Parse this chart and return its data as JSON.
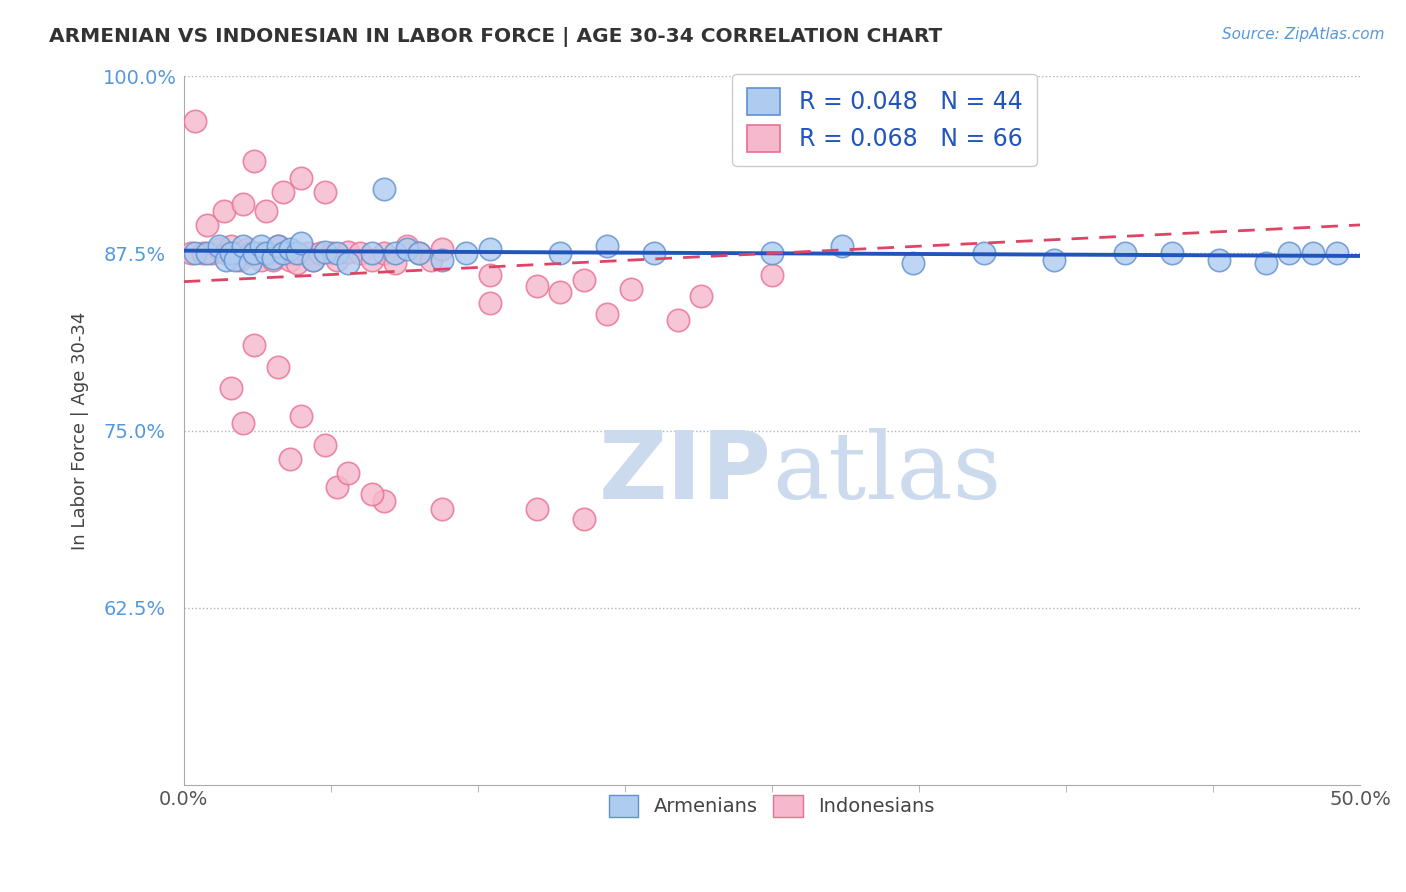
{
  "title": "ARMENIAN VS INDONESIAN IN LABOR FORCE | AGE 30-34 CORRELATION CHART",
  "source_text": "Source: ZipAtlas.com",
  "xlabel": "",
  "ylabel": "In Labor Force | Age 30-34",
  "xlim": [
    0.0,
    0.5
  ],
  "ylim": [
    0.5,
    1.0
  ],
  "xtick_vals": [
    0.0,
    0.5
  ],
  "xtick_labels": [
    "0.0%",
    "50.0%"
  ],
  "xminor_ticks": [
    0.0625,
    0.125,
    0.1875,
    0.25,
    0.3125,
    0.375,
    0.4375
  ],
  "ytick_vals": [
    0.625,
    0.75,
    0.875,
    1.0
  ],
  "ytick_labels": [
    "62.5%",
    "75.0%",
    "87.5%",
    "100.0%"
  ],
  "armenian_R": 0.048,
  "armenian_N": 44,
  "indonesian_R": 0.068,
  "indonesian_N": 66,
  "armenian_color": "#aeccf0",
  "indonesian_color": "#f5b8cc",
  "armenian_edge_color": "#6090d0",
  "indonesian_edge_color": "#e87090",
  "trend_armenian_color": "#2255bb",
  "trend_indonesian_color": "#dd4466",
  "watermark_color": "#ccdaee",
  "legend_armenian_label": "R = 0.048   N = 44",
  "legend_indonesian_label": "R = 0.068   N = 66",
  "armenian_scatter_x": [
    0.005,
    0.01,
    0.015,
    0.018,
    0.02,
    0.022,
    0.025,
    0.028,
    0.03,
    0.033,
    0.035,
    0.038,
    0.04,
    0.042,
    0.045,
    0.048,
    0.05,
    0.055,
    0.06,
    0.065,
    0.07,
    0.08,
    0.085,
    0.09,
    0.095,
    0.1,
    0.11,
    0.12,
    0.13,
    0.16,
    0.18,
    0.2,
    0.25,
    0.28,
    0.31,
    0.34,
    0.37,
    0.4,
    0.42,
    0.44,
    0.46,
    0.47,
    0.48,
    0.49
  ],
  "armenian_scatter_y": [
    0.875,
    0.875,
    0.88,
    0.87,
    0.875,
    0.87,
    0.88,
    0.868,
    0.875,
    0.88,
    0.875,
    0.872,
    0.88,
    0.875,
    0.878,
    0.875,
    0.882,
    0.87,
    0.876,
    0.875,
    0.868,
    0.875,
    0.92,
    0.875,
    0.878,
    0.875,
    0.87,
    0.875,
    0.878,
    0.875,
    0.88,
    0.875,
    0.875,
    0.88,
    0.868,
    0.875,
    0.87,
    0.875,
    0.875,
    0.87,
    0.868,
    0.875,
    0.875,
    0.875
  ],
  "indonesian_scatter_x": [
    0.003,
    0.005,
    0.008,
    0.01,
    0.012,
    0.015,
    0.017,
    0.018,
    0.02,
    0.022,
    0.024,
    0.025,
    0.027,
    0.028,
    0.03,
    0.032,
    0.033,
    0.035,
    0.037,
    0.038,
    0.04,
    0.042,
    0.044,
    0.045,
    0.047,
    0.048,
    0.05,
    0.053,
    0.055,
    0.058,
    0.06,
    0.063,
    0.065,
    0.07,
    0.075,
    0.08,
    0.085,
    0.09,
    0.095,
    0.1,
    0.105,
    0.11,
    0.13,
    0.15,
    0.17,
    0.19,
    0.22,
    0.25,
    0.13,
    0.16,
    0.18,
    0.21,
    0.03,
    0.04,
    0.05,
    0.06,
    0.02,
    0.025,
    0.045,
    0.065,
    0.085,
    0.11,
    0.15,
    0.17,
    0.07,
    0.08
  ],
  "indonesian_scatter_y": [
    0.875,
    0.968,
    0.875,
    0.895,
    0.875,
    0.878,
    0.905,
    0.875,
    0.88,
    0.875,
    0.87,
    0.91,
    0.878,
    0.875,
    0.94,
    0.875,
    0.87,
    0.905,
    0.875,
    0.87,
    0.88,
    0.918,
    0.875,
    0.87,
    0.875,
    0.868,
    0.928,
    0.875,
    0.87,
    0.875,
    0.918,
    0.875,
    0.87,
    0.876,
    0.875,
    0.87,
    0.875,
    0.868,
    0.88,
    0.875,
    0.87,
    0.878,
    0.86,
    0.852,
    0.856,
    0.85,
    0.845,
    0.86,
    0.84,
    0.848,
    0.832,
    0.828,
    0.81,
    0.795,
    0.76,
    0.74,
    0.78,
    0.755,
    0.73,
    0.71,
    0.7,
    0.695,
    0.695,
    0.688,
    0.72,
    0.705
  ]
}
